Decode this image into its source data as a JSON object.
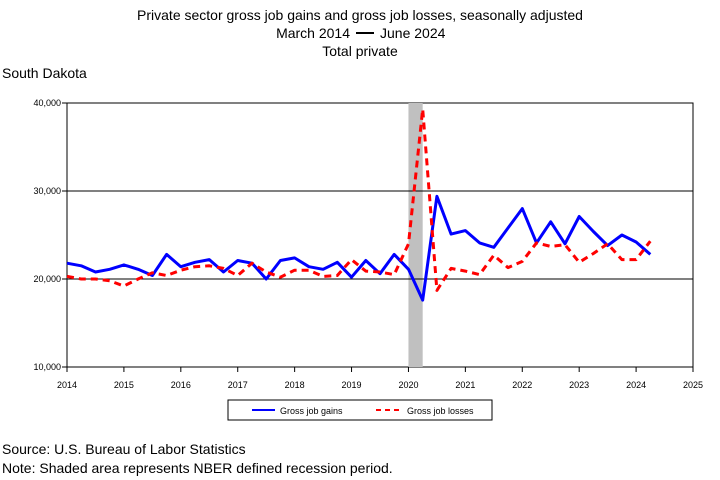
{
  "chart_data": {
    "type": "line",
    "title": "Private sector gross job gains and gross job losses, seasonally adjusted",
    "subtitle_left": "March 2014",
    "subtitle_right": "June 2024",
    "subtitle2": "Total private",
    "region": "South Dakota",
    "xlabel": "",
    "ylabel": "",
    "xlim": [
      2014,
      2025
    ],
    "ylim": [
      10000,
      40000
    ],
    "x_ticks": [
      "2014",
      "2015",
      "2016",
      "2017",
      "2018",
      "2019",
      "2020",
      "2021",
      "2022",
      "2023",
      "2024",
      "2025"
    ],
    "y_ticks": [
      "10,000",
      "20,000",
      "30,000",
      "40,000"
    ],
    "grid": "horizontal",
    "legend_position": "bottom-center",
    "recession_shading": {
      "start": 2020.0,
      "end": 2020.25
    },
    "x": [
      2014.0,
      2014.25,
      2014.5,
      2014.75,
      2015.0,
      2015.25,
      2015.5,
      2015.75,
      2016.0,
      2016.25,
      2016.5,
      2016.75,
      2017.0,
      2017.25,
      2017.5,
      2017.75,
      2018.0,
      2018.25,
      2018.5,
      2018.75,
      2019.0,
      2019.25,
      2019.5,
      2019.75,
      2020.0,
      2020.25,
      2020.5,
      2020.75,
      2021.0,
      2021.25,
      2021.5,
      2021.75,
      2022.0,
      2022.25,
      2022.5,
      2022.75,
      2023.0,
      2023.25,
      2023.5,
      2023.75,
      2024.0,
      2024.25
    ],
    "series": [
      {
        "name": "Gross job gains",
        "color": "#0000ff",
        "style": "solid",
        "values": [
          21800,
          21500,
          20800,
          21100,
          21600,
          21100,
          20400,
          22800,
          21400,
          21900,
          22200,
          20800,
          22100,
          21800,
          20000,
          22100,
          22400,
          21400,
          21100,
          21900,
          20200,
          22100,
          20600,
          22800,
          21100,
          17600,
          29400,
          25100,
          25500,
          24100,
          23600,
          25800,
          28000,
          24100,
          26500,
          24000,
          27100,
          25400,
          23800,
          25000,
          24200,
          22800
        ]
      },
      {
        "name": "Gross job losses",
        "color": "#ff0000",
        "style": "dashed",
        "values": [
          20300,
          20000,
          20000,
          19800,
          19200,
          20000,
          20700,
          20400,
          21000,
          21400,
          21500,
          21200,
          20400,
          21800,
          20800,
          20200,
          21000,
          21000,
          20300,
          20400,
          22200,
          20900,
          20800,
          20500,
          24000,
          39300,
          18700,
          21200,
          20900,
          20500,
          22700,
          21300,
          22000,
          24100,
          23700,
          23900,
          21900,
          22900,
          24000,
          22200,
          22200,
          24300
        ]
      }
    ]
  },
  "footer": {
    "source": "Source: U.S. Bureau of Labor Statistics",
    "note": "Note: Shaded area represents NBER defined recession period."
  }
}
